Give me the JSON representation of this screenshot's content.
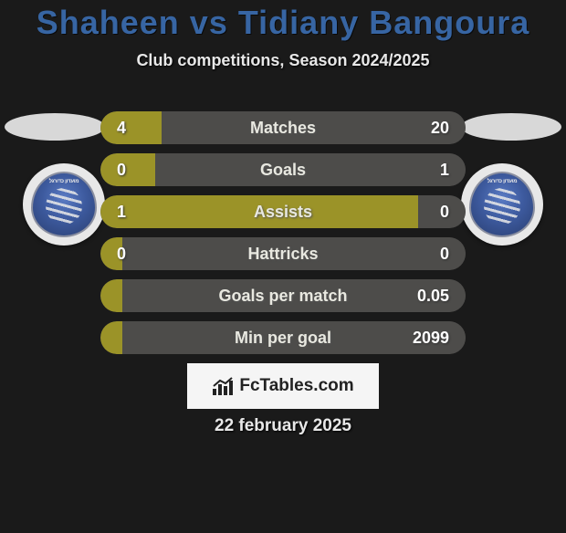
{
  "title": "Shaheen vs Tidiany Bangoura",
  "subtitle": "Club competitions, Season 2024/2025",
  "date": "22 february 2025",
  "brand": "FcTables.com",
  "colors": {
    "title": "#3765a3",
    "bar_left": "#9b9328",
    "bar_right": "#4d4c4a",
    "background": "#1a1a1a"
  },
  "bars": [
    {
      "label": "Matches",
      "left": "4",
      "right": "20",
      "left_frac": 0.167,
      "right_frac": 0.833
    },
    {
      "label": "Goals",
      "left": "0",
      "right": "1",
      "left_frac": 0.15,
      "right_frac": 0.85
    },
    {
      "label": "Assists",
      "left": "1",
      "right": "0",
      "left_frac": 0.87,
      "right_frac": 0.13
    },
    {
      "label": "Hattricks",
      "left": "0",
      "right": "0",
      "left_frac": 0.06,
      "right_frac": 0.06
    },
    {
      "label": "Goals per match",
      "left": "",
      "right": "0.05",
      "left_frac": 0.06,
      "right_frac": 0.94
    },
    {
      "label": "Min per goal",
      "left": "",
      "right": "2099",
      "left_frac": 0.06,
      "right_frac": 0.94
    }
  ]
}
